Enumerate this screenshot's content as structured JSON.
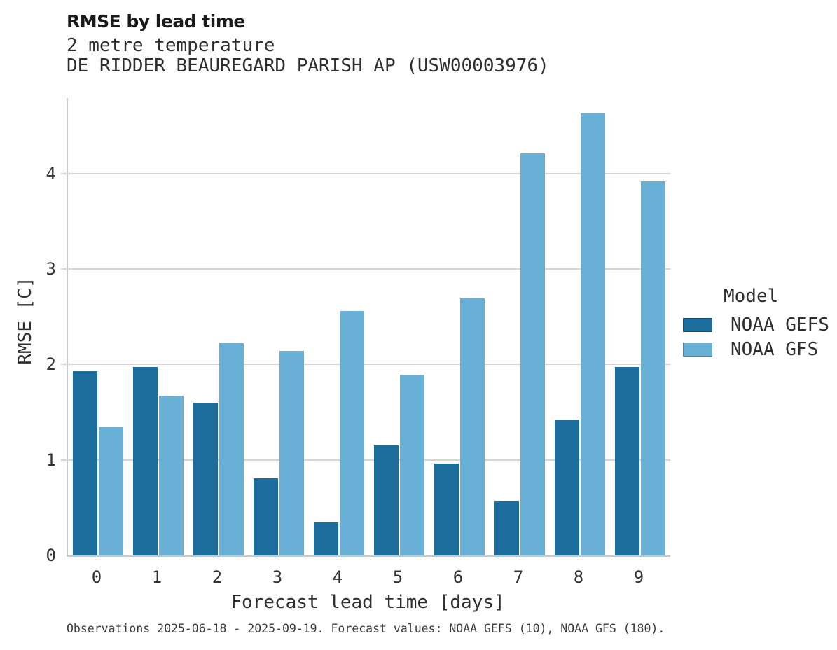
{
  "header": {
    "title": "RMSE by lead time",
    "subtitle_line1": "2 metre temperature",
    "subtitle_line2": "DE RIDDER BEAUREGARD PARISH AP (USW00003976)"
  },
  "footnote": "Observations 2025-06-18 - 2025-09-19. Forecast values: NOAA GEFS (10), NOAA GFS (180).",
  "chart_data": {
    "type": "bar",
    "title": "RMSE by lead time",
    "subtitle": "2 metre temperature — DE RIDDER BEAUREGARD PARISH AP (USW00003976)",
    "xlabel": "Forecast lead time [days]",
    "ylabel": "RMSE [C]",
    "categories": [
      "0",
      "1",
      "2",
      "3",
      "4",
      "5",
      "6",
      "7",
      "8",
      "9"
    ],
    "series": [
      {
        "name": "NOAA GEFS",
        "color": "#1C6D9C",
        "values": [
          1.93,
          1.97,
          1.6,
          0.81,
          0.35,
          1.15,
          0.96,
          0.57,
          1.42,
          1.97
        ]
      },
      {
        "name": "NOAA GFS",
        "color": "#69B0D6",
        "values": [
          1.34,
          1.67,
          2.22,
          2.14,
          2.56,
          1.89,
          2.69,
          4.21,
          4.63,
          3.92
        ]
      }
    ],
    "ylim": [
      0,
      4.79
    ],
    "yticks": [
      0,
      1,
      2,
      3,
      4
    ],
    "grid": "horizontal",
    "legend_title": "Model",
    "legend_position": "right"
  }
}
